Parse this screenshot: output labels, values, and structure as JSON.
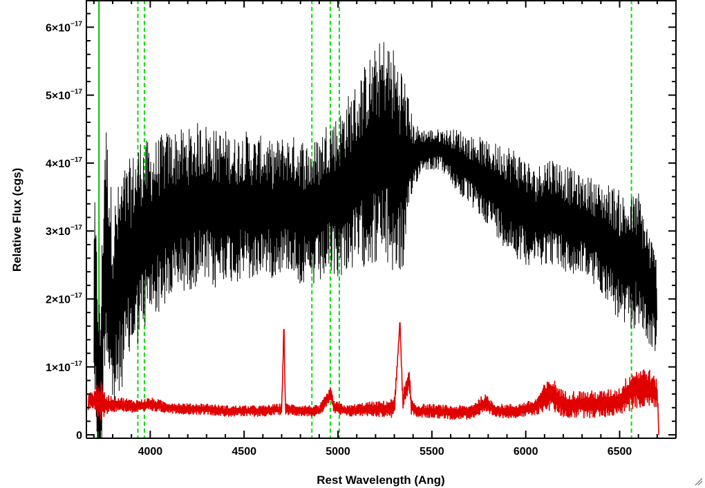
{
  "chart_data": {
    "type": "line",
    "xlabel": "Rest Wavelength (Ang)",
    "ylabel": "Relative Flux (cgs)",
    "xlim": [
      3660,
      6800
    ],
    "ylim": [
      -0.05,
      6.4
    ],
    "y_unit_exponent": -17,
    "x_ticks": [
      4000,
      4500,
      5000,
      5500,
      6000,
      6500
    ],
    "x_tick_labels": [
      "4000",
      "4500",
      "5000",
      "5500",
      "6000",
      "6500"
    ],
    "y_ticks": [
      0,
      1,
      2,
      3,
      4,
      5,
      6
    ],
    "y_tick_labels": [
      {
        "mantissa": "0",
        "exp": ""
      },
      {
        "mantissa": "1×10",
        "exp": "−17"
      },
      {
        "mantissa": "2×10",
        "exp": "−17"
      },
      {
        "mantissa": "3×10",
        "exp": "−17"
      },
      {
        "mantissa": "4×10",
        "exp": "−17"
      },
      {
        "mantissa": "5×10",
        "exp": "−17"
      },
      {
        "mantissa": "6×10",
        "exp": "−17"
      }
    ],
    "grid": false,
    "legend": "none",
    "series": [
      {
        "color": "#000000",
        "x": [
          3700,
          3733,
          3760,
          3800,
          3850,
          3900,
          3950,
          4000,
          4050,
          4100,
          4150,
          4200,
          4250,
          4300,
          4350,
          4400,
          4450,
          4500,
          4550,
          4600,
          4650,
          4700,
          4750,
          4800,
          4850,
          4900,
          4950,
          5000,
          5050,
          5100,
          5150,
          5200,
          5250,
          5300,
          5350,
          5400,
          5450,
          5500,
          5550,
          5600,
          5650,
          5700,
          5750,
          5800,
          5850,
          5900,
          5950,
          6000,
          6050,
          6100,
          6150,
          6200,
          6250,
          6300,
          6350,
          6400,
          6450,
          6500,
          6550,
          6600,
          6650,
          6700
        ],
        "y": [
          2.2,
          0.3,
          3.0,
          1.8,
          2.3,
          2.6,
          2.9,
          3.0,
          3.1,
          3.2,
          3.3,
          3.3,
          3.4,
          3.4,
          3.3,
          3.4,
          3.3,
          3.4,
          3.3,
          3.4,
          3.3,
          3.4,
          3.4,
          3.3,
          3.2,
          3.3,
          3.5,
          3.5,
          3.7,
          3.8,
          4.0,
          4.1,
          4.2,
          4.0,
          3.9,
          4.1,
          4.2,
          4.2,
          4.2,
          4.1,
          4.0,
          3.9,
          3.8,
          3.7,
          3.6,
          3.5,
          3.4,
          3.3,
          3.2,
          3.3,
          3.3,
          3.2,
          3.1,
          3.1,
          3.0,
          2.9,
          2.8,
          2.6,
          2.5,
          2.6,
          2.2,
          1.9
        ],
        "noise": [
          1.5,
          1.5,
          1.8,
          1.6,
          1.6,
          1.5,
          1.5,
          1.3,
          1.3,
          1.3,
          1.2,
          1.2,
          1.2,
          1.2,
          1.2,
          1.1,
          1.1,
          1.1,
          1.1,
          1.0,
          1.0,
          1.0,
          1.0,
          1.1,
          1.1,
          1.1,
          1.2,
          1.2,
          1.3,
          1.4,
          1.5,
          1.6,
          1.7,
          1.7,
          1.5,
          0.5,
          0.3,
          0.3,
          0.3,
          0.4,
          0.5,
          0.5,
          0.6,
          0.6,
          0.7,
          0.8,
          0.8,
          0.8,
          0.7,
          0.8,
          0.8,
          0.8,
          0.8,
          0.7,
          0.8,
          0.8,
          0.9,
          1.0,
          1.0,
          1.0,
          0.9,
          0.7
        ]
      },
      {
        "color": "#e00000",
        "x": [
          3670,
          3700,
          3730,
          3760,
          3800,
          3850,
          3900,
          3950,
          4000,
          4100,
          4200,
          4300,
          4400,
          4500,
          4600,
          4700,
          4712,
          4720,
          4800,
          4900,
          4960,
          4980,
          5050,
          5150,
          5250,
          5300,
          5330,
          5345,
          5380,
          5390,
          5420,
          5500,
          5600,
          5700,
          5780,
          5850,
          5950,
          6050,
          6100,
          6140,
          6200,
          6300,
          6400,
          6500,
          6560,
          6600,
          6650,
          6700,
          6710
        ],
        "y": [
          0.5,
          0.5,
          0.5,
          0.45,
          0.45,
          0.45,
          0.42,
          0.42,
          0.45,
          0.4,
          0.38,
          0.38,
          0.35,
          0.35,
          0.35,
          0.38,
          1.55,
          0.38,
          0.36,
          0.35,
          0.6,
          0.4,
          0.35,
          0.38,
          0.38,
          0.4,
          1.65,
          0.5,
          0.8,
          0.42,
          0.35,
          0.35,
          0.33,
          0.33,
          0.45,
          0.35,
          0.35,
          0.4,
          0.55,
          0.6,
          0.45,
          0.45,
          0.45,
          0.5,
          0.65,
          0.7,
          0.7,
          0.6,
          0.0
        ],
        "noise": [
          0.15,
          0.15,
          0.35,
          0.15,
          0.12,
          0.1,
          0.1,
          0.1,
          0.1,
          0.08,
          0.08,
          0.08,
          0.08,
          0.08,
          0.08,
          0.08,
          0.0,
          0.08,
          0.08,
          0.08,
          0.1,
          0.1,
          0.08,
          0.1,
          0.12,
          0.15,
          0.0,
          0.15,
          0.15,
          0.12,
          0.1,
          0.1,
          0.1,
          0.1,
          0.15,
          0.1,
          0.1,
          0.12,
          0.2,
          0.25,
          0.2,
          0.2,
          0.2,
          0.2,
          0.3,
          0.3,
          0.3,
          0.2,
          0.0
        ]
      }
    ],
    "vertical_lines": [
      {
        "x": 3727,
        "color": "#00c000",
        "style": "solid"
      },
      {
        "x": 3934,
        "color": "#00e000",
        "style": "dashed"
      },
      {
        "x": 3969,
        "color": "#00e000",
        "style": "dashed"
      },
      {
        "x": 4861,
        "color": "#00e000",
        "style": "dashed"
      },
      {
        "x": 4959,
        "color": "#00e000",
        "style": "dashed"
      },
      {
        "x": 5007,
        "color": "#00e000",
        "style": "dashed"
      },
      {
        "x": 6563,
        "color": "#00e000",
        "style": "dashed"
      }
    ]
  }
}
